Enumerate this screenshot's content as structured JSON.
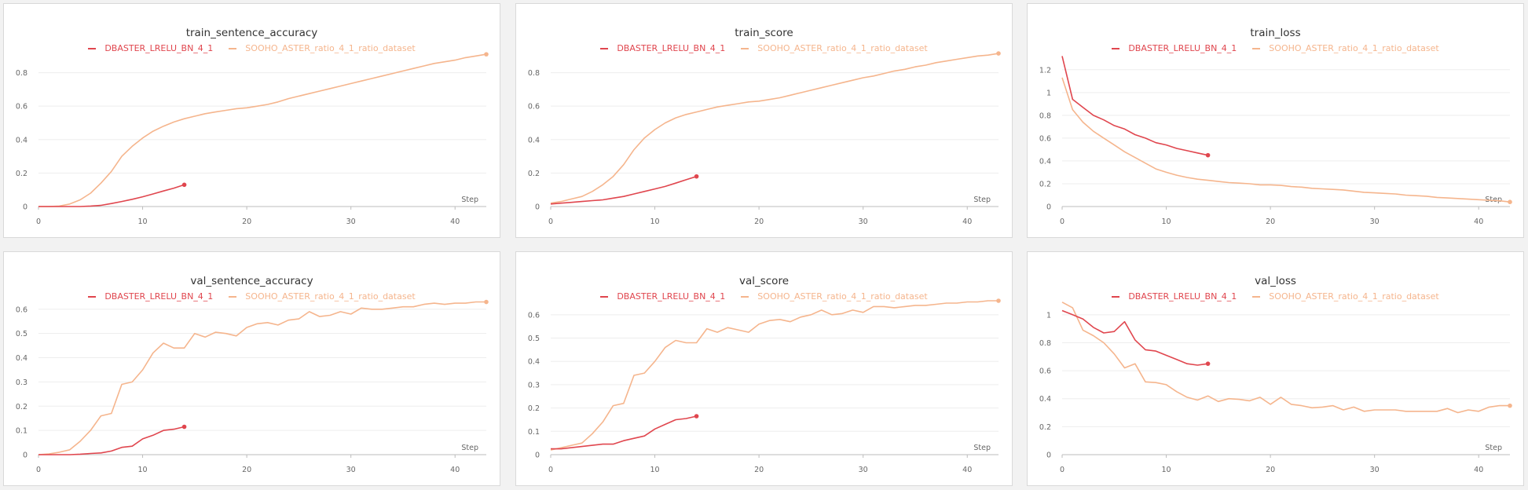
{
  "colors": {
    "series_a": "#e0464e",
    "series_b": "#f5b58d",
    "grid": "#ededed",
    "axis": "#bcbcbc"
  },
  "chart_data": [
    {
      "id": "p1",
      "type": "line",
      "title": "train_sentence_accuracy",
      "xlabel": "Step",
      "ylabel": "",
      "xlim": [
        0,
        43
      ],
      "ylim": [
        0,
        0.92
      ],
      "xticks": [
        0,
        10,
        20,
        30,
        40
      ],
      "xtick_labels": [
        "0",
        "10",
        "20",
        "30",
        "40"
      ],
      "yticks": [
        0,
        0.2,
        0.4,
        0.6,
        0.8
      ],
      "ytick_labels": [
        "0",
        "0.2",
        "0.4",
        "0.6",
        "0.8"
      ],
      "legend_position": "top-center",
      "grid": true,
      "series": [
        {
          "name": "DBASTER_LRELU_BN_4_1",
          "color": "#e0464e",
          "x": [
            0,
            1,
            2,
            3,
            4,
            5,
            6,
            7,
            8,
            9,
            10,
            11,
            12,
            13,
            14
          ],
          "y": [
            0,
            0,
            0,
            0,
            0,
            0.003,
            0.007,
            0.018,
            0.03,
            0.043,
            0.058,
            0.075,
            0.093,
            0.11,
            0.13
          ]
        },
        {
          "name": "SOOHO_ASTER_ratio_4_1_ratio_dataset",
          "color": "#f5b58d",
          "x": [
            0,
            1,
            2,
            3,
            4,
            5,
            6,
            7,
            8,
            9,
            10,
            11,
            12,
            13,
            14,
            15,
            16,
            17,
            18,
            19,
            20,
            21,
            22,
            23,
            24,
            25,
            26,
            27,
            28,
            29,
            30,
            31,
            32,
            33,
            34,
            35,
            36,
            37,
            38,
            39,
            40,
            41,
            42,
            43
          ],
          "y": [
            0,
            0,
            0.003,
            0.015,
            0.04,
            0.08,
            0.14,
            0.21,
            0.3,
            0.36,
            0.41,
            0.45,
            0.48,
            0.505,
            0.525,
            0.54,
            0.555,
            0.565,
            0.575,
            0.585,
            0.59,
            0.6,
            0.61,
            0.625,
            0.645,
            0.66,
            0.675,
            0.69,
            0.705,
            0.72,
            0.735,
            0.75,
            0.765,
            0.78,
            0.795,
            0.81,
            0.825,
            0.84,
            0.855,
            0.865,
            0.875,
            0.89,
            0.9,
            0.91
          ]
        }
      ]
    },
    {
      "id": "p2",
      "type": "line",
      "title": "train_score",
      "xlabel": "Step",
      "ylabel": "",
      "xlim": [
        0,
        43
      ],
      "ylim": [
        0,
        0.92
      ],
      "xticks": [
        0,
        10,
        20,
        30,
        40
      ],
      "xtick_labels": [
        "0",
        "10",
        "20",
        "30",
        "40"
      ],
      "yticks": [
        0,
        0.2,
        0.4,
        0.6,
        0.8
      ],
      "ytick_labels": [
        "0",
        "0.2",
        "0.4",
        "0.6",
        "0.8"
      ],
      "legend_position": "top-center",
      "grid": true,
      "series": [
        {
          "name": "DBASTER_LRELU_BN_4_1",
          "color": "#e0464e",
          "x": [
            0,
            1,
            2,
            3,
            4,
            5,
            6,
            7,
            8,
            9,
            10,
            11,
            12,
            13,
            14
          ],
          "y": [
            0.015,
            0.02,
            0.025,
            0.03,
            0.035,
            0.04,
            0.05,
            0.06,
            0.075,
            0.09,
            0.105,
            0.12,
            0.14,
            0.16,
            0.18
          ]
        },
        {
          "name": "SOOHO_ASTER_ratio_4_1_ratio_dataset",
          "color": "#f5b58d",
          "x": [
            0,
            1,
            2,
            3,
            4,
            5,
            6,
            7,
            8,
            9,
            10,
            11,
            12,
            13,
            14,
            15,
            16,
            17,
            18,
            19,
            20,
            21,
            22,
            23,
            24,
            25,
            26,
            27,
            28,
            29,
            30,
            31,
            32,
            33,
            34,
            35,
            36,
            37,
            38,
            39,
            40,
            41,
            42,
            43
          ],
          "y": [
            0.02,
            0.03,
            0.045,
            0.06,
            0.09,
            0.13,
            0.18,
            0.25,
            0.34,
            0.41,
            0.46,
            0.5,
            0.53,
            0.55,
            0.565,
            0.58,
            0.595,
            0.605,
            0.615,
            0.625,
            0.63,
            0.64,
            0.65,
            0.665,
            0.68,
            0.695,
            0.71,
            0.725,
            0.74,
            0.755,
            0.77,
            0.78,
            0.795,
            0.81,
            0.82,
            0.835,
            0.845,
            0.86,
            0.87,
            0.88,
            0.89,
            0.9,
            0.905,
            0.915
          ]
        }
      ]
    },
    {
      "id": "p3",
      "type": "line",
      "title": "train_loss",
      "xlabel": "Step",
      "ylabel": "",
      "xlim": [
        0,
        43
      ],
      "ylim": [
        0,
        1.35
      ],
      "xticks": [
        0,
        10,
        20,
        30,
        40
      ],
      "xtick_labels": [
        "0",
        "10",
        "20",
        "30",
        "40"
      ],
      "yticks": [
        0,
        0.2,
        0.4,
        0.6,
        0.8,
        1,
        1.2
      ],
      "ytick_labels": [
        "0",
        "0.2",
        "0.4",
        "0.6",
        "0.8",
        "1",
        "1.2"
      ],
      "legend_position": "top-center",
      "grid": true,
      "series": [
        {
          "name": "DBASTER_LRELU_BN_4_1",
          "color": "#e0464e",
          "x": [
            0,
            1,
            2,
            3,
            4,
            5,
            6,
            7,
            8,
            9,
            10,
            11,
            12,
            13,
            14
          ],
          "y": [
            1.32,
            0.94,
            0.87,
            0.8,
            0.76,
            0.71,
            0.68,
            0.63,
            0.6,
            0.56,
            0.54,
            0.51,
            0.49,
            0.47,
            0.45
          ]
        },
        {
          "name": "SOOHO_ASTER_ratio_4_1_ratio_dataset",
          "color": "#f5b58d",
          "x": [
            0,
            1,
            2,
            3,
            4,
            5,
            6,
            7,
            8,
            9,
            10,
            11,
            12,
            13,
            14,
            15,
            16,
            17,
            18,
            19,
            20,
            21,
            22,
            23,
            24,
            25,
            26,
            27,
            28,
            29,
            30,
            31,
            32,
            33,
            34,
            35,
            36,
            37,
            38,
            39,
            40,
            41,
            42,
            43
          ],
          "y": [
            1.13,
            0.85,
            0.74,
            0.66,
            0.6,
            0.54,
            0.48,
            0.43,
            0.38,
            0.33,
            0.3,
            0.275,
            0.255,
            0.24,
            0.23,
            0.22,
            0.21,
            0.205,
            0.2,
            0.19,
            0.19,
            0.185,
            0.175,
            0.17,
            0.16,
            0.155,
            0.15,
            0.145,
            0.135,
            0.125,
            0.12,
            0.115,
            0.11,
            0.1,
            0.095,
            0.09,
            0.08,
            0.075,
            0.07,
            0.065,
            0.06,
            0.055,
            0.05,
            0.04
          ]
        }
      ]
    },
    {
      "id": "p4",
      "type": "line",
      "title": "val_sentence_accuracy",
      "xlabel": "Step",
      "ylabel": "",
      "xlim": [
        0,
        43
      ],
      "ylim": [
        0,
        0.635
      ],
      "xticks": [
        0,
        10,
        20,
        30,
        40
      ],
      "xtick_labels": [
        "0",
        "10",
        "20",
        "30",
        "40"
      ],
      "yticks": [
        0,
        0.1,
        0.2,
        0.3,
        0.4,
        0.5,
        0.6
      ],
      "ytick_labels": [
        "0",
        "0.1",
        "0.2",
        "0.3",
        "0.4",
        "0.5",
        "0.6"
      ],
      "legend_position": "top-center",
      "grid": true,
      "series": [
        {
          "name": "DBASTER_LRELU_BN_4_1",
          "color": "#e0464e",
          "x": [
            0,
            1,
            2,
            3,
            4,
            5,
            6,
            7,
            8,
            9,
            10,
            11,
            12,
            13,
            14
          ],
          "y": [
            0,
            0,
            0,
            0,
            0.002,
            0.005,
            0.007,
            0.015,
            0.03,
            0.035,
            0.065,
            0.08,
            0.1,
            0.105,
            0.115
          ]
        },
        {
          "name": "SOOHO_ASTER_ratio_4_1_ratio_dataset",
          "color": "#f5b58d",
          "x": [
            0,
            1,
            2,
            3,
            4,
            5,
            6,
            7,
            8,
            9,
            10,
            11,
            12,
            13,
            14,
            15,
            16,
            17,
            18,
            19,
            20,
            21,
            22,
            23,
            24,
            25,
            26,
            27,
            28,
            29,
            30,
            31,
            32,
            33,
            34,
            35,
            36,
            37,
            38,
            39,
            40,
            41,
            42,
            43
          ],
          "y": [
            0,
            0.003,
            0.01,
            0.02,
            0.055,
            0.1,
            0.16,
            0.17,
            0.29,
            0.3,
            0.35,
            0.42,
            0.46,
            0.44,
            0.44,
            0.5,
            0.485,
            0.505,
            0.5,
            0.49,
            0.525,
            0.54,
            0.545,
            0.535,
            0.555,
            0.56,
            0.59,
            0.57,
            0.575,
            0.59,
            0.58,
            0.605,
            0.6,
            0.6,
            0.605,
            0.61,
            0.61,
            0.62,
            0.625,
            0.62,
            0.625,
            0.625,
            0.63,
            0.63
          ]
        }
      ]
    },
    {
      "id": "p5",
      "type": "line",
      "title": "val_score",
      "xlabel": "Step",
      "ylabel": "",
      "xlim": [
        0,
        43
      ],
      "ylim": [
        0,
        0.66
      ],
      "xticks": [
        0,
        10,
        20,
        30,
        40
      ],
      "xtick_labels": [
        "0",
        "10",
        "20",
        "30",
        "40"
      ],
      "yticks": [
        0,
        0.1,
        0.2,
        0.3,
        0.4,
        0.5,
        0.6
      ],
      "ytick_labels": [
        "0",
        "0.1",
        "0.2",
        "0.3",
        "0.4",
        "0.5",
        "0.6"
      ],
      "legend_position": "top-center",
      "grid": true,
      "series": [
        {
          "name": "DBASTER_LRELU_BN_4_1",
          "color": "#e0464e",
          "x": [
            0,
            1,
            2,
            3,
            4,
            5,
            6,
            7,
            8,
            9,
            10,
            11,
            12,
            13,
            14
          ],
          "y": [
            0.025,
            0.025,
            0.03,
            0.035,
            0.04,
            0.045,
            0.045,
            0.06,
            0.07,
            0.08,
            0.11,
            0.13,
            0.15,
            0.155,
            0.165
          ]
        },
        {
          "name": "SOOHO_ASTER_ratio_4_1_ratio_dataset",
          "color": "#f5b58d",
          "x": [
            0,
            1,
            2,
            3,
            4,
            5,
            6,
            7,
            8,
            9,
            10,
            11,
            12,
            13,
            14,
            15,
            16,
            17,
            18,
            19,
            20,
            21,
            22,
            23,
            24,
            25,
            26,
            27,
            28,
            29,
            30,
            31,
            32,
            33,
            34,
            35,
            36,
            37,
            38,
            39,
            40,
            41,
            42,
            43
          ],
          "y": [
            0.02,
            0.03,
            0.04,
            0.05,
            0.09,
            0.14,
            0.21,
            0.22,
            0.34,
            0.35,
            0.4,
            0.46,
            0.49,
            0.48,
            0.48,
            0.54,
            0.525,
            0.545,
            0.535,
            0.525,
            0.56,
            0.575,
            0.58,
            0.57,
            0.59,
            0.6,
            0.62,
            0.6,
            0.605,
            0.62,
            0.61,
            0.635,
            0.635,
            0.63,
            0.635,
            0.64,
            0.64,
            0.645,
            0.65,
            0.65,
            0.655,
            0.655,
            0.66,
            0.66
          ]
        }
      ]
    },
    {
      "id": "p6",
      "type": "line",
      "title": "val_loss",
      "xlabel": "Step",
      "ylabel": "",
      "xlim": [
        0,
        43
      ],
      "ylim": [
        0,
        1.1
      ],
      "xticks": [
        0,
        10,
        20,
        30,
        40
      ],
      "xtick_labels": [
        "0",
        "10",
        "20",
        "30",
        "40"
      ],
      "yticks": [
        0,
        0.2,
        0.4,
        0.6,
        0.8,
        1
      ],
      "ytick_labels": [
        "0",
        "0.2",
        "0.4",
        "0.6",
        "0.8",
        "1"
      ],
      "legend_position": "top-center",
      "grid": true,
      "series": [
        {
          "name": "DBASTER_LRELU_BN_4_1",
          "color": "#e0464e",
          "x": [
            0,
            1,
            2,
            3,
            4,
            5,
            6,
            7,
            8,
            9,
            10,
            11,
            12,
            13,
            14
          ],
          "y": [
            1.03,
            1,
            0.97,
            0.91,
            0.87,
            0.88,
            0.95,
            0.82,
            0.75,
            0.74,
            0.71,
            0.68,
            0.65,
            0.64,
            0.65
          ]
        },
        {
          "name": "SOOHO_ASTER_ratio_4_1_ratio_dataset",
          "color": "#f5b58d",
          "x": [
            0,
            1,
            2,
            3,
            4,
            5,
            6,
            7,
            8,
            9,
            10,
            11,
            12,
            13,
            14,
            15,
            16,
            17,
            18,
            19,
            20,
            21,
            22,
            23,
            24,
            25,
            26,
            27,
            28,
            29,
            30,
            31,
            32,
            33,
            34,
            35,
            36,
            37,
            38,
            39,
            40,
            41,
            42,
            43
          ],
          "y": [
            1.09,
            1.05,
            0.89,
            0.85,
            0.8,
            0.72,
            0.62,
            0.65,
            0.52,
            0.515,
            0.5,
            0.45,
            0.41,
            0.39,
            0.42,
            0.38,
            0.4,
            0.395,
            0.385,
            0.41,
            0.36,
            0.41,
            0.36,
            0.35,
            0.335,
            0.34,
            0.35,
            0.32,
            0.34,
            0.31,
            0.32,
            0.32,
            0.32,
            0.31,
            0.31,
            0.31,
            0.31,
            0.33,
            0.3,
            0.32,
            0.31,
            0.34,
            0.35,
            0.35
          ]
        }
      ]
    }
  ]
}
